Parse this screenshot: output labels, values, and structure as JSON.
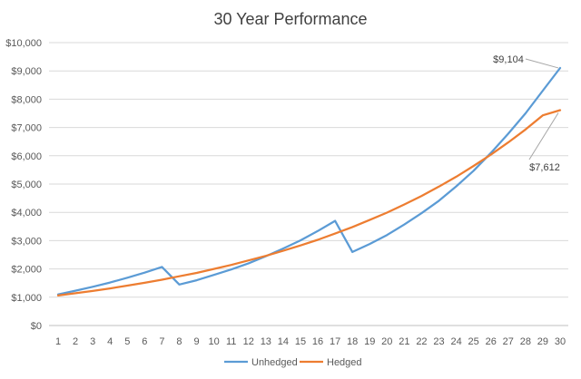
{
  "chart_data": {
    "type": "line",
    "title": "30 Year Performance",
    "xlabel": "",
    "ylabel": "",
    "x": [
      1,
      2,
      3,
      4,
      5,
      6,
      7,
      8,
      9,
      10,
      11,
      12,
      13,
      14,
      15,
      16,
      17,
      18,
      19,
      20,
      21,
      22,
      23,
      24,
      25,
      26,
      27,
      28,
      29,
      30
    ],
    "y_ticks": [
      "$0",
      "$1,000",
      "$2,000",
      "$3,000",
      "$4,000",
      "$5,000",
      "$6,000",
      "$7,000",
      "$8,000",
      "$9,000",
      "$10,000"
    ],
    "ylim": [
      0,
      10000
    ],
    "grid": "horizontal",
    "legend_position": "bottom",
    "series": [
      {
        "name": "Unhedged",
        "color": "#5B9BD5",
        "values": [
          1100,
          1230,
          1370,
          1520,
          1690,
          1870,
          2070,
          1450,
          1600,
          1790,
          1980,
          2200,
          2450,
          2720,
          3010,
          3340,
          3700,
          2600,
          2880,
          3200,
          3570,
          3970,
          4410,
          4920,
          5470,
          6100,
          6780,
          7500,
          8300,
          9104
        ]
      },
      {
        "name": "Hedged",
        "color": "#ED7D31",
        "values": [
          1060,
          1140,
          1220,
          1310,
          1410,
          1510,
          1620,
          1740,
          1860,
          2000,
          2140,
          2300,
          2460,
          2640,
          2830,
          3030,
          3250,
          3480,
          3730,
          3990,
          4280,
          4580,
          4910,
          5260,
          5640,
          6040,
          6470,
          6930,
          7430,
          7612
        ]
      }
    ],
    "annotations": [
      {
        "series": "Unhedged",
        "x": 30,
        "label": "$9,104"
      },
      {
        "series": "Hedged",
        "x": 30,
        "label": "$7,612"
      }
    ]
  }
}
